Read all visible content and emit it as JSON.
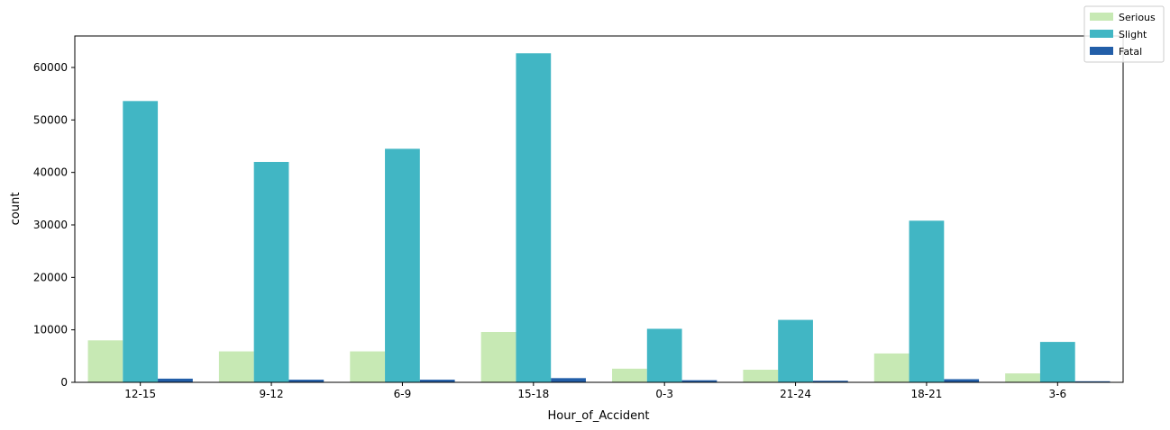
{
  "chart_data": {
    "type": "bar",
    "xlabel": "Hour_of_Accident",
    "ylabel": "count",
    "ylim": [
      0,
      66000
    ],
    "yticks": [
      0,
      10000,
      20000,
      30000,
      40000,
      50000,
      60000
    ],
    "grid": false,
    "legend_position": "top-right",
    "categories": [
      "12-15",
      "9-12",
      "6-9",
      "15-18",
      "0-3",
      "21-24",
      "18-21",
      "3-6"
    ],
    "series": [
      {
        "name": "Serious",
        "color": "#c7e9b4",
        "values": [
          8000,
          5900,
          5900,
          9600,
          2600,
          2400,
          5500,
          1700
        ]
      },
      {
        "name": "Slight",
        "color": "#41b6c4",
        "values": [
          53600,
          42000,
          44500,
          62700,
          10200,
          11900,
          30800,
          7700
        ]
      },
      {
        "name": "Fatal",
        "color": "#225ea8",
        "values": [
          700,
          500,
          500,
          800,
          400,
          300,
          600,
          200
        ]
      }
    ]
  }
}
